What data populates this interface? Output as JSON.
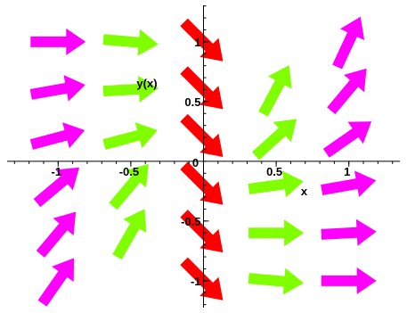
{
  "chart_data": {
    "type": "direction_field",
    "xlabel": "x",
    "ylabel": "y(x)",
    "x_ticks": [
      {
        "value": -1,
        "label": "-1"
      },
      {
        "value": -0.5,
        "label": "-0.5"
      },
      {
        "value": 0,
        "label": "0"
      },
      {
        "value": 0.5,
        "label": "0.5"
      },
      {
        "value": 1,
        "label": "1"
      }
    ],
    "y_ticks": [
      {
        "value": 1,
        "label": "1"
      },
      {
        "value": 0.5,
        "label": "0.5"
      },
      {
        "value": -0.5,
        "label": "-0.5"
      },
      {
        "value": -1,
        "label": "-1"
      }
    ],
    "xlim": [
      -1.4,
      1.4
    ],
    "ylim": [
      -1.27,
      1.35
    ],
    "grid": false,
    "colors": {
      "magenta": "#ff00ff",
      "green": "#80ff00",
      "red": "#ff0000"
    },
    "arrows": [
      {
        "x": -1.0,
        "y": 1.0,
        "angle_deg": 0,
        "color": "magenta"
      },
      {
        "x": -1.0,
        "y": 0.6,
        "angle_deg": 10,
        "color": "magenta"
      },
      {
        "x": -1.0,
        "y": 0.2,
        "angle_deg": 15,
        "color": "magenta"
      },
      {
        "x": -1.0,
        "y": -0.2,
        "angle_deg": 40,
        "color": "magenta"
      },
      {
        "x": -1.0,
        "y": -0.6,
        "angle_deg": 50,
        "color": "magenta"
      },
      {
        "x": -1.0,
        "y": -1.0,
        "angle_deg": 55,
        "color": "magenta"
      },
      {
        "x": -0.5,
        "y": 1.0,
        "angle_deg": -5,
        "color": "green"
      },
      {
        "x": -0.5,
        "y": 0.6,
        "angle_deg": 3,
        "color": "green"
      },
      {
        "x": -0.5,
        "y": 0.2,
        "angle_deg": 15,
        "color": "green"
      },
      {
        "x": -0.5,
        "y": -0.2,
        "angle_deg": 50,
        "color": "green"
      },
      {
        "x": -0.5,
        "y": -0.6,
        "angle_deg": 60,
        "color": "green"
      },
      {
        "x": 0.0,
        "y": 1.0,
        "angle_deg": -45,
        "color": "red"
      },
      {
        "x": 0.0,
        "y": 0.6,
        "angle_deg": -45,
        "color": "red"
      },
      {
        "x": 0.0,
        "y": 0.2,
        "angle_deg": -45,
        "color": "red"
      },
      {
        "x": 0.0,
        "y": -0.2,
        "angle_deg": -45,
        "color": "red"
      },
      {
        "x": 0.0,
        "y": -0.6,
        "angle_deg": -45,
        "color": "red"
      },
      {
        "x": 0.0,
        "y": -1.0,
        "angle_deg": -45,
        "color": "red"
      },
      {
        "x": 0.5,
        "y": 0.6,
        "angle_deg": 62,
        "color": "green"
      },
      {
        "x": 0.5,
        "y": 0.2,
        "angle_deg": 42,
        "color": "green"
      },
      {
        "x": 0.5,
        "y": -0.2,
        "angle_deg": 8,
        "color": "green"
      },
      {
        "x": 0.5,
        "y": -0.6,
        "angle_deg": 0,
        "color": "green"
      },
      {
        "x": 0.5,
        "y": -1.0,
        "angle_deg": -5,
        "color": "green"
      },
      {
        "x": 1.0,
        "y": 1.0,
        "angle_deg": 65,
        "color": "magenta"
      },
      {
        "x": 1.0,
        "y": 0.6,
        "angle_deg": 50,
        "color": "magenta"
      },
      {
        "x": 1.0,
        "y": 0.2,
        "angle_deg": 35,
        "color": "magenta"
      },
      {
        "x": 1.0,
        "y": -0.2,
        "angle_deg": 10,
        "color": "magenta"
      },
      {
        "x": 1.0,
        "y": -0.6,
        "angle_deg": 3,
        "color": "magenta"
      },
      {
        "x": 1.0,
        "y": -1.0,
        "angle_deg": 0,
        "color": "magenta"
      }
    ]
  }
}
